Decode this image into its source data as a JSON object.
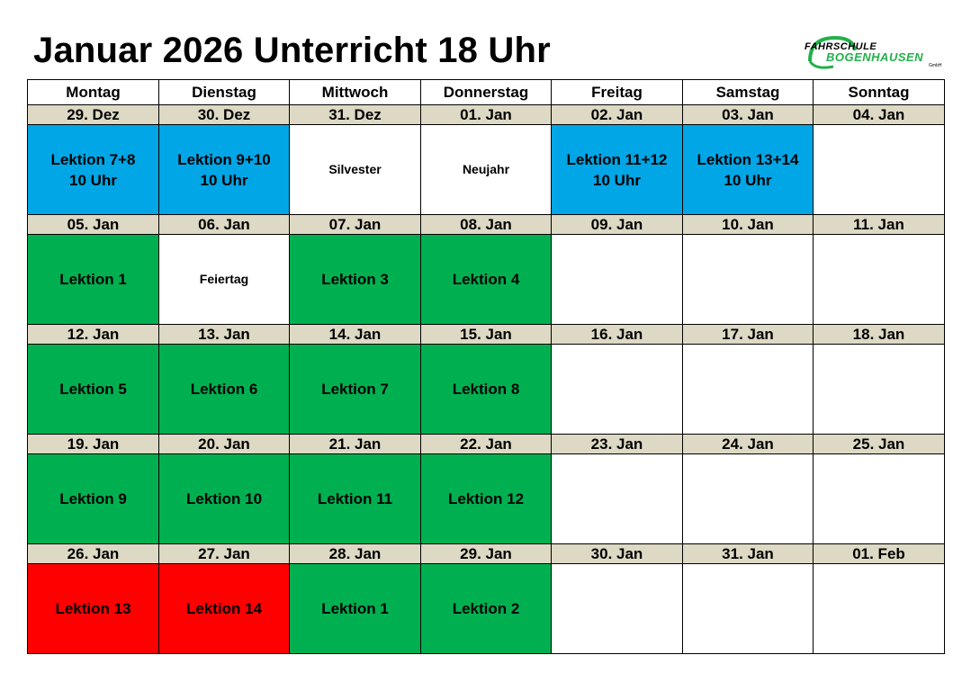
{
  "title": "Januar 2026 Unterricht 18 Uhr",
  "logo": {
    "line1": "FAHRSCHULE",
    "line2": "BOGENHAUSEN",
    "line3": "GmbH"
  },
  "colors": {
    "blue": "#00a6e6",
    "green": "#00b050",
    "red": "#ff0000",
    "date_bg": "#ddd9c4"
  },
  "weekdays": [
    "Montag",
    "Dienstag",
    "Mittwoch",
    "Donnerstag",
    "Freitag",
    "Samstag",
    "Sonntag"
  ],
  "weeks": [
    {
      "dates": [
        "29. Dez",
        "30. Dez",
        "31. Dez",
        "01. Jan",
        "02. Jan",
        "03. Jan",
        "04. Jan"
      ],
      "cells": [
        {
          "lines": [
            "Lektion 7+8",
            "10 Uhr"
          ],
          "color": "blue"
        },
        {
          "lines": [
            "Lektion 9+10",
            "10 Uhr"
          ],
          "color": "blue"
        },
        {
          "lines": [
            "Silvester"
          ],
          "color": "white"
        },
        {
          "lines": [
            "Neujahr"
          ],
          "color": "white"
        },
        {
          "lines": [
            "Lektion 11+12",
            "10 Uhr"
          ],
          "color": "blue"
        },
        {
          "lines": [
            "Lektion 13+14",
            "10 Uhr"
          ],
          "color": "blue"
        },
        {
          "lines": [],
          "color": "white"
        }
      ]
    },
    {
      "dates": [
        "05. Jan",
        "06. Jan",
        "07. Jan",
        "08. Jan",
        "09. Jan",
        "10. Jan",
        "11. Jan"
      ],
      "cells": [
        {
          "lines": [
            "Lektion 1"
          ],
          "color": "green"
        },
        {
          "lines": [
            "Feiertag"
          ],
          "color": "white"
        },
        {
          "lines": [
            "Lektion 3"
          ],
          "color": "green"
        },
        {
          "lines": [
            "Lektion 4"
          ],
          "color": "green"
        },
        {
          "lines": [],
          "color": "white"
        },
        {
          "lines": [],
          "color": "white"
        },
        {
          "lines": [],
          "color": "white"
        }
      ]
    },
    {
      "dates": [
        "12. Jan",
        "13. Jan",
        "14. Jan",
        "15. Jan",
        "16. Jan",
        "17. Jan",
        "18. Jan"
      ],
      "cells": [
        {
          "lines": [
            "Lektion 5"
          ],
          "color": "green"
        },
        {
          "lines": [
            "Lektion 6"
          ],
          "color": "green"
        },
        {
          "lines": [
            "Lektion 7"
          ],
          "color": "green"
        },
        {
          "lines": [
            "Lektion 8"
          ],
          "color": "green"
        },
        {
          "lines": [],
          "color": "white"
        },
        {
          "lines": [],
          "color": "white"
        },
        {
          "lines": [],
          "color": "white"
        }
      ]
    },
    {
      "dates": [
        "19. Jan",
        "20. Jan",
        "21. Jan",
        "22. Jan",
        "23. Jan",
        "24. Jan",
        "25. Jan"
      ],
      "cells": [
        {
          "lines": [
            "Lektion 9"
          ],
          "color": "green"
        },
        {
          "lines": [
            "Lektion 10"
          ],
          "color": "green"
        },
        {
          "lines": [
            "Lektion 11"
          ],
          "color": "green"
        },
        {
          "lines": [
            "Lektion 12"
          ],
          "color": "green"
        },
        {
          "lines": [],
          "color": "white"
        },
        {
          "lines": [],
          "color": "white"
        },
        {
          "lines": [],
          "color": "white"
        }
      ]
    },
    {
      "dates": [
        "26. Jan",
        "27. Jan",
        "28. Jan",
        "29. Jan",
        "30. Jan",
        "31. Jan",
        "01. Feb"
      ],
      "cells": [
        {
          "lines": [
            "Lektion 13"
          ],
          "color": "red"
        },
        {
          "lines": [
            "Lektion 14"
          ],
          "color": "red"
        },
        {
          "lines": [
            "Lektion 1"
          ],
          "color": "green"
        },
        {
          "lines": [
            "Lektion 2"
          ],
          "color": "green"
        },
        {
          "lines": [],
          "color": "white"
        },
        {
          "lines": [],
          "color": "white"
        },
        {
          "lines": [],
          "color": "white"
        }
      ]
    }
  ]
}
